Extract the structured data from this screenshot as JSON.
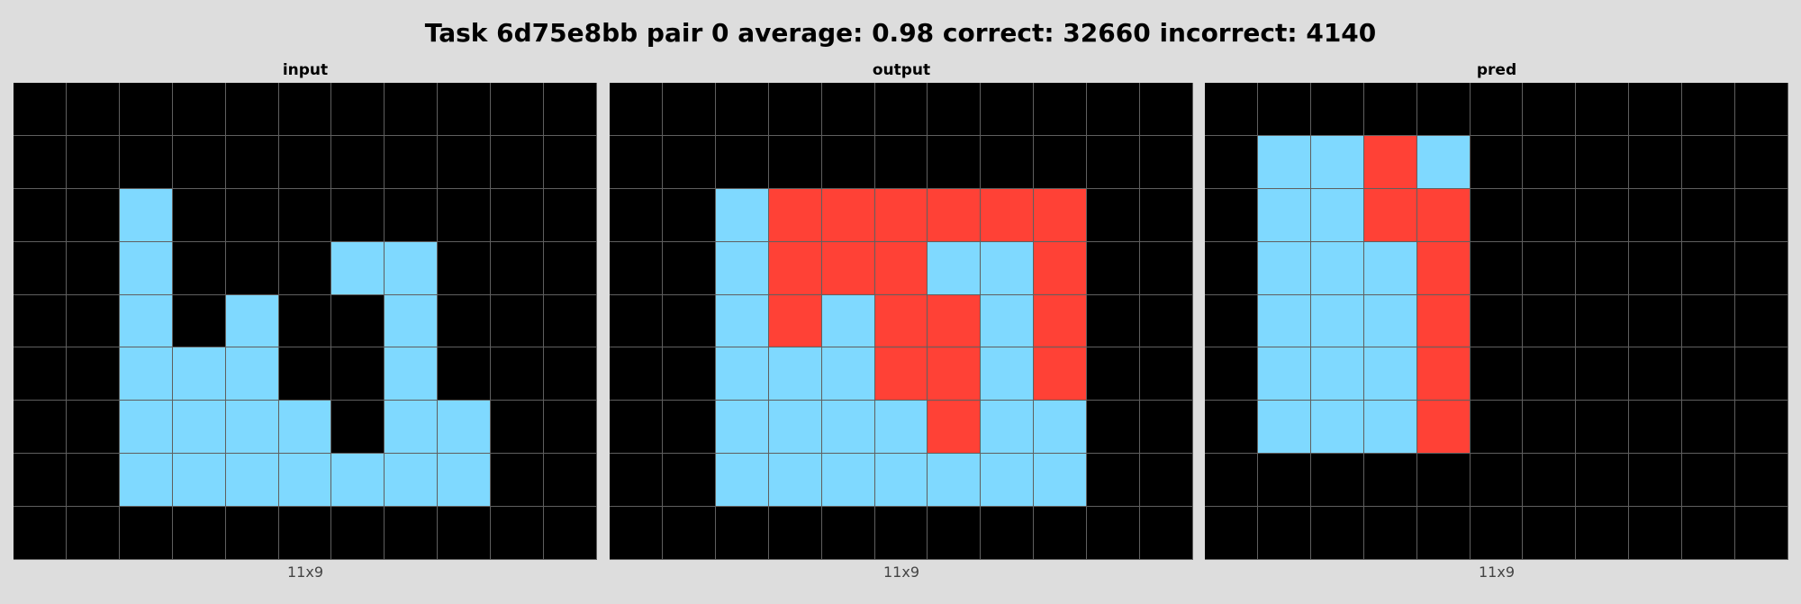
{
  "title": "Task 6d75e8bb pair 0 average: 0.98 correct: 32660 incorrect: 4140",
  "colors": {
    "0": "#000000",
    "1": "#7fd9ff",
    "2": "#ff4136"
  },
  "panels": [
    {
      "label": "input",
      "dims": "11x9",
      "grid": [
        [
          0,
          0,
          0,
          0,
          0,
          0,
          0,
          0,
          0,
          0,
          0
        ],
        [
          0,
          0,
          0,
          0,
          0,
          0,
          0,
          0,
          0,
          0,
          0
        ],
        [
          0,
          0,
          1,
          0,
          0,
          0,
          0,
          0,
          0,
          0,
          0
        ],
        [
          0,
          0,
          1,
          0,
          0,
          0,
          1,
          1,
          0,
          0,
          0
        ],
        [
          0,
          0,
          1,
          0,
          1,
          0,
          0,
          1,
          0,
          0,
          0
        ],
        [
          0,
          0,
          1,
          1,
          1,
          0,
          0,
          1,
          0,
          0,
          0
        ],
        [
          0,
          0,
          1,
          1,
          1,
          1,
          0,
          1,
          1,
          0,
          0
        ],
        [
          0,
          0,
          1,
          1,
          1,
          1,
          1,
          1,
          1,
          0,
          0
        ],
        [
          0,
          0,
          0,
          0,
          0,
          0,
          0,
          0,
          0,
          0,
          0
        ]
      ]
    },
    {
      "label": "output",
      "dims": "11x9",
      "grid": [
        [
          0,
          0,
          0,
          0,
          0,
          0,
          0,
          0,
          0,
          0,
          0
        ],
        [
          0,
          0,
          0,
          0,
          0,
          0,
          0,
          0,
          0,
          0,
          0
        ],
        [
          0,
          0,
          1,
          2,
          2,
          2,
          2,
          2,
          2,
          0,
          0
        ],
        [
          0,
          0,
          1,
          2,
          2,
          2,
          1,
          1,
          2,
          0,
          0
        ],
        [
          0,
          0,
          1,
          2,
          1,
          2,
          2,
          1,
          2,
          0,
          0
        ],
        [
          0,
          0,
          1,
          1,
          1,
          2,
          2,
          1,
          2,
          0,
          0
        ],
        [
          0,
          0,
          1,
          1,
          1,
          1,
          2,
          1,
          1,
          0,
          0
        ],
        [
          0,
          0,
          1,
          1,
          1,
          1,
          1,
          1,
          1,
          0,
          0
        ],
        [
          0,
          0,
          0,
          0,
          0,
          0,
          0,
          0,
          0,
          0,
          0
        ]
      ]
    },
    {
      "label": "pred",
      "dims": "11x9",
      "grid": [
        [
          0,
          0,
          0,
          0,
          0,
          0,
          0,
          0,
          0,
          0,
          0
        ],
        [
          0,
          1,
          1,
          2,
          1,
          0,
          0,
          0,
          0,
          0,
          0
        ],
        [
          0,
          1,
          1,
          2,
          2,
          0,
          0,
          0,
          0,
          0,
          0
        ],
        [
          0,
          1,
          1,
          1,
          2,
          0,
          0,
          0,
          0,
          0,
          0
        ],
        [
          0,
          1,
          1,
          1,
          2,
          0,
          0,
          0,
          0,
          0,
          0
        ],
        [
          0,
          1,
          1,
          1,
          2,
          0,
          0,
          0,
          0,
          0,
          0
        ],
        [
          0,
          1,
          1,
          1,
          2,
          0,
          0,
          0,
          0,
          0,
          0
        ],
        [
          0,
          0,
          0,
          0,
          0,
          0,
          0,
          0,
          0,
          0,
          0
        ],
        [
          0,
          0,
          0,
          0,
          0,
          0,
          0,
          0,
          0,
          0,
          0
        ]
      ]
    }
  ]
}
